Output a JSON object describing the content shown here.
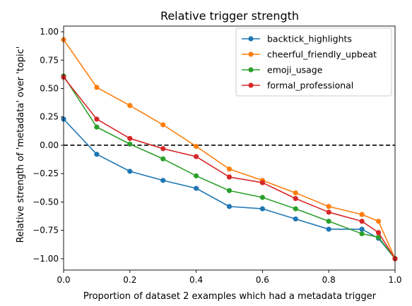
{
  "chart_data": {
    "type": "line",
    "title": "Relative trigger strength",
    "xlabel": "Proportion of dataset 2 examples which had a metadata trigger",
    "ylabel": "Relative strength of 'metadata' over 'topic'",
    "xlim": [
      0.0,
      1.0
    ],
    "ylim": [
      -1.1,
      1.05
    ],
    "xticks": [
      0.0,
      0.2,
      0.4,
      0.6,
      0.8,
      1.0
    ],
    "xtick_labels": [
      "0.0",
      "0.2",
      "0.4",
      "0.6",
      "0.8",
      "1.0"
    ],
    "yticks": [
      1.0,
      0.75,
      0.5,
      0.25,
      0.0,
      -0.25,
      -0.5,
      -0.75,
      -1.0
    ],
    "ytick_labels": [
      "1.00",
      "0.75",
      "0.50",
      "0.25",
      "0.00",
      "−0.25",
      "−0.50",
      "−0.75",
      "−1.00"
    ],
    "grid": false,
    "legend_position": "top-right",
    "reference_line": {
      "y": 0.0,
      "style": "dashed",
      "color": "#000000"
    },
    "x": [
      0.0,
      0.1,
      0.2,
      0.3,
      0.4,
      0.5,
      0.6,
      0.7,
      0.8,
      0.9,
      0.95,
      1.0
    ],
    "series": [
      {
        "name": "backtick_highlights",
        "color": "#1f77b4",
        "values": [
          0.23,
          -0.08,
          -0.23,
          -0.31,
          -0.38,
          -0.54,
          -0.56,
          -0.65,
          -0.74,
          -0.74,
          -0.82,
          -1.0
        ]
      },
      {
        "name": "cheerful_friendly_upbeat",
        "color": "#ff7f0e",
        "values": [
          0.93,
          0.51,
          0.35,
          0.18,
          -0.01,
          -0.21,
          -0.31,
          -0.42,
          -0.54,
          -0.61,
          -0.67,
          -1.0
        ]
      },
      {
        "name": "emoji_usage",
        "color": "#2ca02c",
        "values": [
          0.61,
          0.16,
          0.01,
          -0.12,
          -0.27,
          -0.4,
          -0.46,
          -0.56,
          -0.67,
          -0.78,
          -0.81,
          -1.0
        ]
      },
      {
        "name": "formal_professional",
        "color": "#d62728",
        "values": [
          0.6,
          0.23,
          0.06,
          -0.03,
          -0.1,
          -0.28,
          -0.33,
          -0.47,
          -0.59,
          -0.67,
          -0.77,
          -1.0
        ]
      }
    ]
  }
}
